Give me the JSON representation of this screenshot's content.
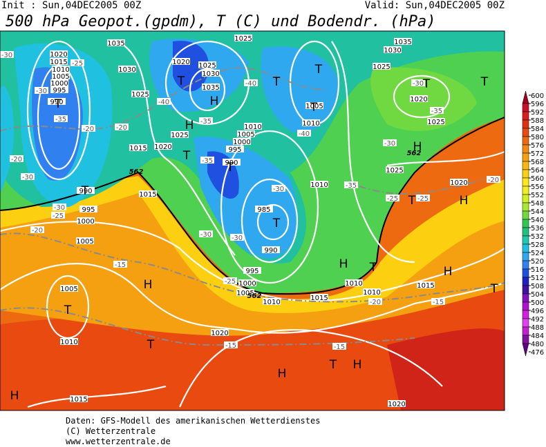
{
  "header": {
    "init": "Init : Sun,04DEC2005 00Z",
    "valid": "Valid: Sun,04DEC2005 00Z",
    "title": "500 hPa Geopot.(gpdm), T (C) und Bodendr. (hPa)"
  },
  "footer": {
    "lines": [
      "Daten: GFS-Modell des amerikanischen Wetterdienstes",
      "(C) Wetterzentrale",
      "www.wetterzentrale.de"
    ]
  },
  "colorbar": {
    "values": [
      600,
      596,
      592,
      588,
      584,
      580,
      576,
      572,
      568,
      564,
      560,
      556,
      552,
      548,
      544,
      540,
      536,
      532,
      528,
      524,
      520,
      516,
      512,
      508,
      504,
      500,
      496,
      492,
      488,
      484,
      480,
      476
    ],
    "colors": [
      "#a00020",
      "#c8102e",
      "#d81e1e",
      "#e03010",
      "#e84a10",
      "#ee6a10",
      "#f08a10",
      "#f4a010",
      "#f8b810",
      "#fcd010",
      "#ffe818",
      "#f0f020",
      "#d0f020",
      "#a8e830",
      "#70d840",
      "#30c850",
      "#20c080",
      "#20c8b0",
      "#20c0e0",
      "#30a8f0",
      "#3080f0",
      "#2050e0",
      "#2020c0",
      "#4010a0",
      "#8010c0",
      "#b010d0",
      "#d020e0",
      "#e040f0",
      "#c020d0",
      "#8010a0",
      "#600080"
    ]
  },
  "map": {
    "isobar_labels": [
      1020,
      1015,
      1010,
      1005,
      1000,
      995,
      990,
      990,
      995,
      1000,
      1005,
      1035,
      1030,
      1025,
      1020,
      1015,
      1020,
      1025,
      1030,
      1035,
      1025,
      1010,
      1005,
      1000,
      995,
      990,
      985,
      990,
      995,
      1000,
      1005,
      1010,
      1015,
      1010,
      1010,
      1010,
      1005,
      1010,
      1025,
      1030,
      1035,
      1020,
      1025,
      1025,
      1020,
      1015,
      1015,
      1005,
      1010,
      1020,
      1015,
      1020,
      1025
    ],
    "temperature_labels": [
      -25,
      -30,
      -35,
      -20,
      -20,
      -30,
      -30,
      -25,
      -20,
      -20,
      -15,
      -35,
      -40,
      -40,
      -35,
      -30,
      -30,
      -30,
      -25,
      -20,
      -15,
      -15,
      -15,
      -25,
      -25,
      -30,
      -35,
      -30,
      -20,
      -35,
      -40,
      -30
    ],
    "pressure_systems": [
      "T",
      "T",
      "T",
      "T",
      "T",
      "H",
      "H",
      "T",
      "T",
      "T",
      "T",
      "H",
      "T",
      "T",
      "T",
      "H",
      "H",
      "T",
      "H",
      "T",
      "H",
      "T",
      "T",
      "T",
      "H",
      "H",
      "H"
    ],
    "height_labels": [
      562,
      562,
      562
    ]
  }
}
